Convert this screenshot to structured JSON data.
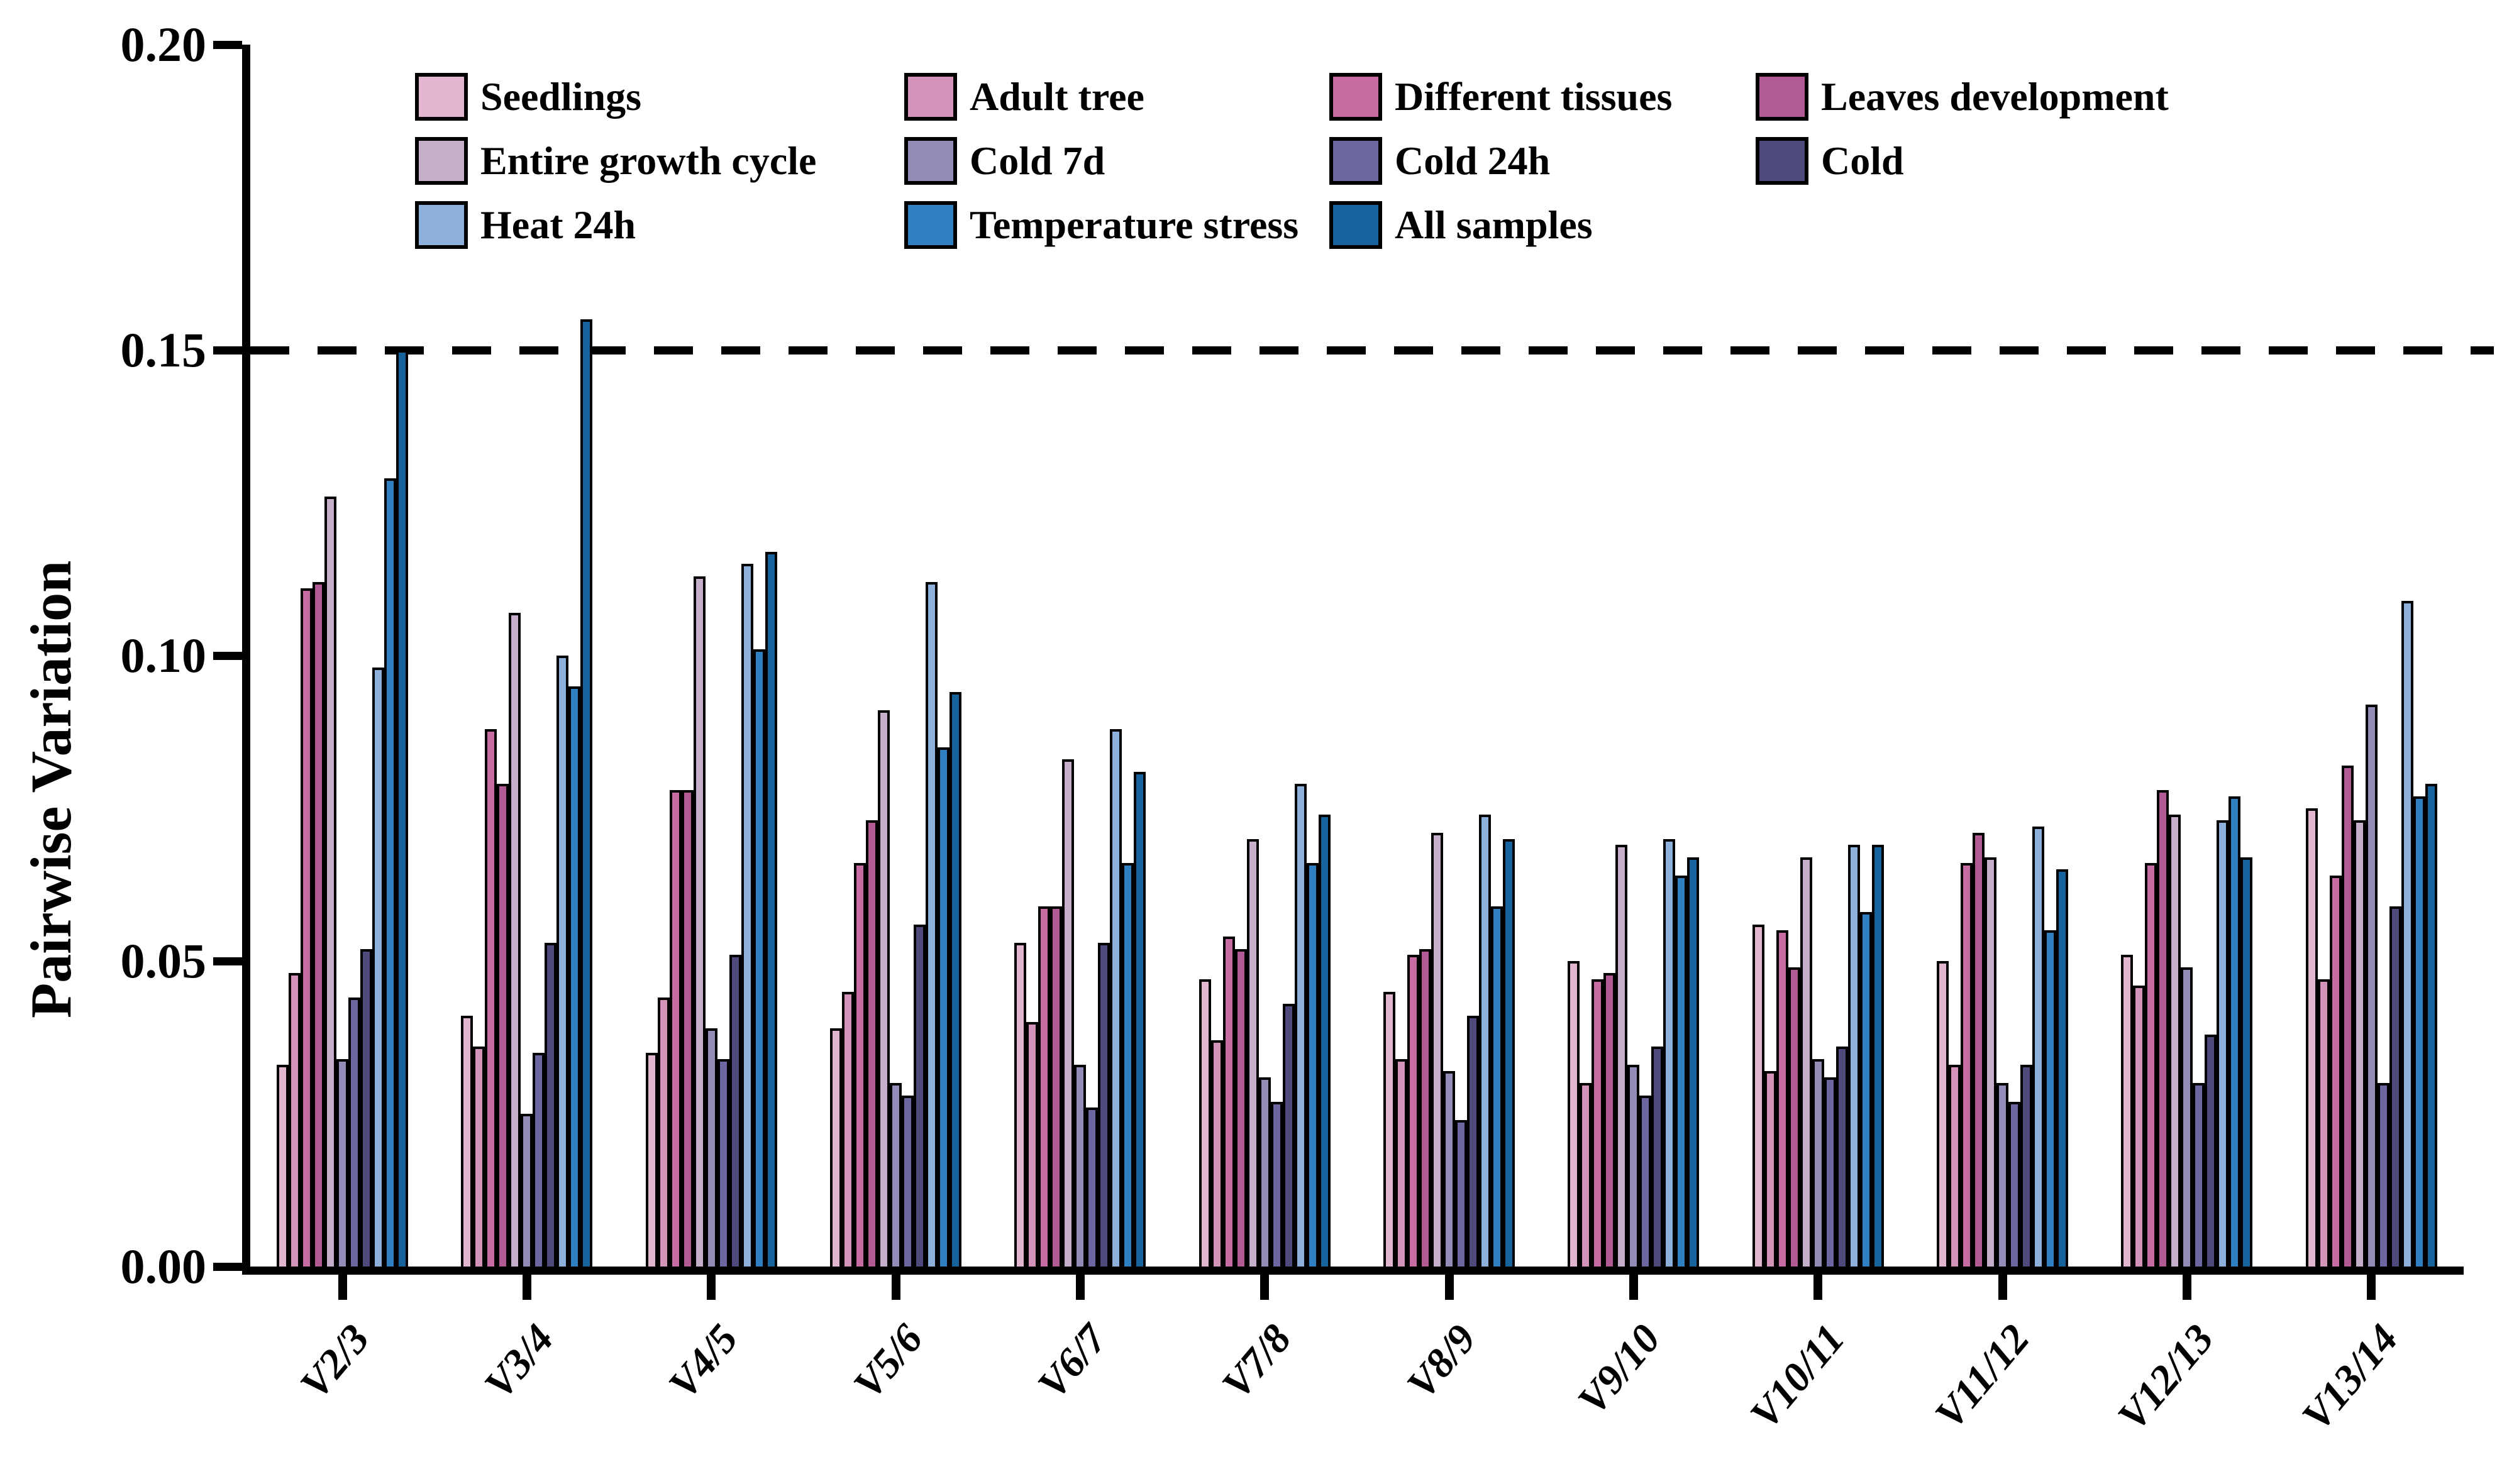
{
  "chart_data": {
    "type": "bar",
    "title": "",
    "xlabel": "",
    "ylabel": "Pairwise Variation",
    "ylim": [
      0,
      0.2
    ],
    "yticks": [
      "0.00",
      "0.05",
      "0.10",
      "0.15",
      "0.20"
    ],
    "threshold_value": 0.15,
    "grid": false,
    "legend_position": "top-left-inside",
    "background_color": "#ffffff",
    "axis_color": "#000000",
    "categories": [
      "V2/3",
      "V3/4",
      "V4/5",
      "V5/6",
      "V6/7",
      "V7/8",
      "V8/9",
      "V9/10",
      "V10/11",
      "V11/12",
      "V12/13",
      "V13/14"
    ],
    "series": [
      {
        "name": "Seedlings",
        "color": "#e2b6ce",
        "values": [
          0.033,
          0.041,
          0.035,
          0.039,
          0.053,
          0.047,
          0.045,
          0.05,
          0.056,
          0.05,
          0.051,
          0.075
        ]
      },
      {
        "name": "Adult tree",
        "color": "#d494b9",
        "values": [
          0.048,
          0.036,
          0.044,
          0.045,
          0.04,
          0.037,
          0.034,
          0.03,
          0.032,
          0.033,
          0.046,
          0.047
        ]
      },
      {
        "name": "Different tissues",
        "color": "#c76ba3",
        "values": [
          0.111,
          0.088,
          0.078,
          0.066,
          0.059,
          0.054,
          0.051,
          0.047,
          0.055,
          0.066,
          0.066,
          0.064
        ]
      },
      {
        "name": "Leaves development",
        "color": "#b15a94",
        "values": [
          0.112,
          0.079,
          0.078,
          0.073,
          0.059,
          0.052,
          0.052,
          0.048,
          0.049,
          0.071,
          0.078,
          0.082
        ]
      },
      {
        "name": "Entire growth cycle",
        "color": "#c5afca",
        "values": [
          0.126,
          0.107,
          0.113,
          0.091,
          0.083,
          0.07,
          0.071,
          0.069,
          0.067,
          0.067,
          0.074,
          0.073
        ]
      },
      {
        "name": "Cold 7d",
        "color": "#948bb6",
        "values": [
          0.034,
          0.025,
          0.039,
          0.03,
          0.033,
          0.031,
          0.032,
          0.033,
          0.034,
          0.03,
          0.049,
          0.092
        ]
      },
      {
        "name": "Cold 24h",
        "color": "#6d67a1",
        "values": [
          0.044,
          0.035,
          0.034,
          0.028,
          0.026,
          0.027,
          0.024,
          0.028,
          0.031,
          0.027,
          0.03,
          0.03
        ]
      },
      {
        "name": "Cold",
        "color": "#4f4a7c",
        "values": [
          0.052,
          0.053,
          0.051,
          0.056,
          0.053,
          0.043,
          0.041,
          0.036,
          0.036,
          0.033,
          0.038,
          0.059
        ]
      },
      {
        "name": "Heat 24h",
        "color": "#8eb1db",
        "values": [
          0.098,
          0.1,
          0.115,
          0.112,
          0.088,
          0.079,
          0.074,
          0.07,
          0.069,
          0.072,
          0.073,
          0.109
        ]
      },
      {
        "name": "Temperature stress",
        "color": "#2f80c2",
        "values": [
          0.129,
          0.095,
          0.101,
          0.085,
          0.066,
          0.066,
          0.059,
          0.064,
          0.058,
          0.055,
          0.077,
          0.077
        ]
      },
      {
        "name": "All samples",
        "color": "#17639e",
        "values": [
          0.15,
          0.155,
          0.117,
          0.094,
          0.081,
          0.074,
          0.07,
          0.067,
          0.069,
          0.065,
          0.067,
          0.079
        ]
      }
    ]
  }
}
